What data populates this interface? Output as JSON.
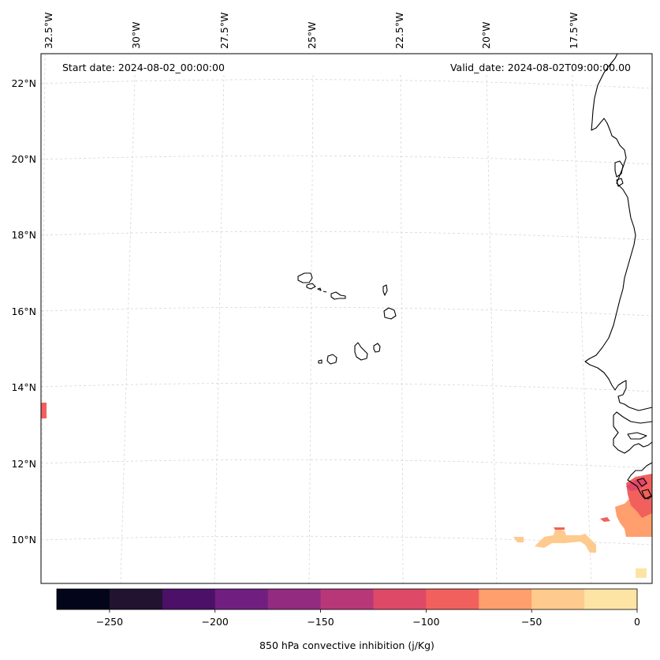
{
  "map": {
    "start_date": "Start date: 2024-08-02_00:00:00",
    "valid_date": "Valid_date: 2024-08-02T09:00:00.00",
    "lon_labels": [
      "32.5°W",
      "30°W",
      "27.5°W",
      "25°W",
      "22.5°W",
      "20°W",
      "17.5°W"
    ],
    "lat_labels": [
      "22°N",
      "20°N",
      "18°N",
      "16°N",
      "14°N",
      "12°N",
      "10°N"
    ]
  },
  "colorbar": {
    "label": "850 hPa convective inhibition (j/Kg)",
    "ticks": [
      "−250",
      "−200",
      "−150",
      "−100",
      "−50",
      "0"
    ],
    "colors": [
      "#03051a",
      "#221331",
      "#4c1068",
      "#701f81",
      "#932b80",
      "#b73779",
      "#de4968",
      "#f1605d",
      "#fe9f6d",
      "#feca8d",
      "#fde4a5"
    ]
  }
}
